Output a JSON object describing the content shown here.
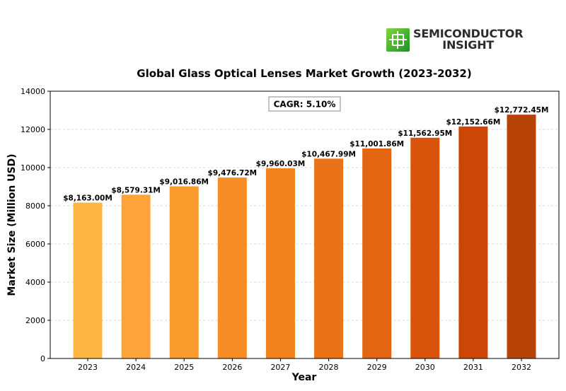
{
  "logo": {
    "line1": "SEMICONDUCTOR",
    "line2": "INSIGHT"
  },
  "chart_data": {
    "type": "bar",
    "title": "Global Glass Optical Lenses Market Growth (2023-2032)",
    "xlabel": "Year",
    "ylabel": "Market Size (Million USD)",
    "ylim": [
      0,
      14000
    ],
    "yticks": [
      0,
      2000,
      4000,
      6000,
      8000,
      10000,
      12000,
      14000
    ],
    "grid": true,
    "categories": [
      "2023",
      "2024",
      "2025",
      "2026",
      "2027",
      "2028",
      "2029",
      "2030",
      "2031",
      "2032"
    ],
    "values": [
      8163.0,
      8579.31,
      9016.86,
      9476.72,
      9960.03,
      10467.99,
      11001.86,
      11562.95,
      12152.66,
      12772.45
    ],
    "data_labels": [
      "$8,163.00M",
      "$8,579.31M",
      "$9,016.86M",
      "$9,476.72M",
      "$9,960.03M",
      "$10,467.99M",
      "$11,001.86M",
      "$11,562.95M",
      "$12,152.66M",
      "$12,772.45M"
    ],
    "colors": [
      "#FDB544",
      "#FCA43A",
      "#FA9B2E",
      "#F68D24",
      "#F2821D",
      "#EA7318",
      "#E26512",
      "#D8540B",
      "#CC4607",
      "#B84306"
    ],
    "annotation": "CAGR: 5.10%"
  }
}
